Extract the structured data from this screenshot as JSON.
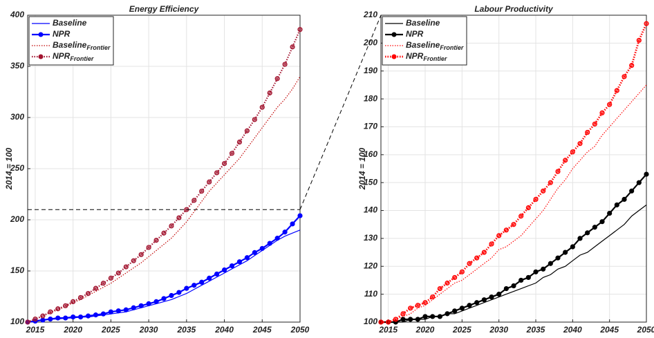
{
  "chart_data": [
    {
      "type": "line",
      "title": "Energy Efficiency",
      "ylabel": "2014 = 100",
      "x": [
        2014,
        2015,
        2016,
        2017,
        2018,
        2019,
        2020,
        2021,
        2022,
        2023,
        2024,
        2025,
        2026,
        2027,
        2028,
        2029,
        2030,
        2031,
        2032,
        2033,
        2034,
        2035,
        2036,
        2037,
        2038,
        2039,
        2040,
        2041,
        2042,
        2043,
        2044,
        2045,
        2046,
        2047,
        2048,
        2049,
        2050
      ],
      "xlim": [
        2014,
        2050
      ],
      "xticks": [
        2015,
        2020,
        2025,
        2030,
        2035,
        2040,
        2045,
        2050
      ],
      "ylim": [
        100,
        400
      ],
      "yticks": [
        100,
        150,
        200,
        250,
        300,
        350,
        400
      ],
      "grid": true,
      "legend": "upper left",
      "series": [
        {
          "name": "Baseline",
          "color": "#0000ff",
          "style": "solid",
          "width": 1.2,
          "marker": false,
          "values": [
            100,
            101,
            102,
            103,
            103,
            104,
            104,
            105,
            105,
            106,
            107,
            108,
            109,
            110,
            112,
            114,
            116,
            118,
            120,
            122,
            125,
            128,
            132,
            136,
            140,
            144,
            148,
            152,
            156,
            160,
            165,
            170,
            175,
            180,
            184,
            187,
            190
          ]
        },
        {
          "name": "NPR",
          "color": "#0000ff",
          "style": "solid",
          "width": 2.2,
          "marker": true,
          "values": [
            100,
            101,
            102,
            103,
            104,
            104,
            105,
            105,
            106,
            107,
            108,
            110,
            111,
            112,
            114,
            116,
            118,
            120,
            123,
            126,
            129,
            133,
            136,
            139,
            143,
            147,
            151,
            155,
            159,
            163,
            168,
            172,
            177,
            182,
            188,
            196,
            204
          ]
        },
        {
          "name": "Baseline",
          "name_sub": "Frontier",
          "color": "#c00000",
          "style": "dotted",
          "width": 1.2,
          "marker": false,
          "values": [
            100,
            103,
            106,
            109,
            112,
            115,
            119,
            122,
            126,
            130,
            134,
            138,
            143,
            148,
            153,
            158,
            164,
            170,
            176,
            182,
            190,
            198,
            208,
            218,
            228,
            236,
            244,
            252,
            260,
            270,
            280,
            290,
            300,
            310,
            318,
            328,
            340
          ]
        },
        {
          "name": "NPR",
          "name_sub": "Frontier",
          "color": "#a2142f",
          "style": "dotted",
          "width": 2.2,
          "marker": true,
          "values": [
            100,
            103,
            106,
            110,
            113,
            116,
            120,
            124,
            128,
            133,
            138,
            143,
            148,
            154,
            160,
            166,
            173,
            180,
            187,
            194,
            202,
            210,
            219,
            228,
            237,
            246,
            255,
            265,
            276,
            287,
            298,
            310,
            324,
            338,
            352,
            369,
            386
          ]
        }
      ]
    },
    {
      "type": "line",
      "title": "Labour Productivity",
      "ylabel": "2014 = 100",
      "x": [
        2014,
        2015,
        2016,
        2017,
        2018,
        2019,
        2020,
        2021,
        2022,
        2023,
        2024,
        2025,
        2026,
        2027,
        2028,
        2029,
        2030,
        2031,
        2032,
        2033,
        2034,
        2035,
        2036,
        2037,
        2038,
        2039,
        2040,
        2041,
        2042,
        2043,
        2044,
        2045,
        2046,
        2047,
        2048,
        2049,
        2050
      ],
      "xlim": [
        2014,
        2050
      ],
      "xticks": [
        2015,
        2020,
        2025,
        2030,
        2035,
        2040,
        2045,
        2050
      ],
      "ylim": [
        100,
        210
      ],
      "yticks": [
        100,
        110,
        120,
        130,
        140,
        150,
        160,
        170,
        180,
        190,
        200,
        210
      ],
      "grid": true,
      "legend": "upper left",
      "series": [
        {
          "name": "Baseline",
          "color": "#000000",
          "style": "solid",
          "width": 1.2,
          "marker": false,
          "values": [
            100,
            100,
            100,
            100,
            101,
            101,
            101,
            102,
            102,
            103,
            103,
            104,
            105,
            106,
            107,
            108,
            109,
            110,
            111,
            112,
            113,
            114,
            116,
            117,
            119,
            120,
            122,
            124,
            125,
            127,
            129,
            131,
            133,
            135,
            138,
            140,
            142
          ]
        },
        {
          "name": "NPR",
          "color": "#000000",
          "style": "solid",
          "width": 2.2,
          "marker": true,
          "values": [
            100,
            100,
            100,
            101,
            101,
            101,
            102,
            102,
            102,
            103,
            104,
            105,
            106,
            107,
            108,
            109,
            110,
            112,
            113,
            115,
            116,
            118,
            119,
            121,
            123,
            125,
            127,
            130,
            132,
            134,
            136,
            139,
            142,
            144,
            147,
            150,
            153
          ]
        },
        {
          "name": "Baseline",
          "name_sub": "Frontier",
          "color": "#ff0000",
          "style": "dotted",
          "width": 1.2,
          "marker": false,
          "values": [
            100,
            100,
            101,
            102,
            103,
            105,
            106,
            108,
            110,
            112,
            114,
            115,
            117,
            119,
            121,
            123,
            126,
            127,
            129,
            131,
            134,
            137,
            140,
            144,
            148,
            151,
            155,
            158,
            161,
            163,
            167,
            170,
            173,
            176,
            179,
            182,
            185
          ]
        },
        {
          "name": "NPR",
          "name_sub": "Frontier",
          "color": "#ff0000",
          "style": "dotted",
          "width": 2.8,
          "marker": true,
          "values": [
            100,
            100,
            101,
            103,
            105,
            106,
            107,
            109,
            112,
            114,
            116,
            118,
            121,
            123,
            125,
            128,
            131,
            133,
            135,
            138,
            141,
            144,
            147,
            150,
            154,
            158,
            161,
            164,
            168,
            171,
            175,
            178,
            183,
            188,
            192,
            201,
            207
          ]
        }
      ]
    }
  ]
}
